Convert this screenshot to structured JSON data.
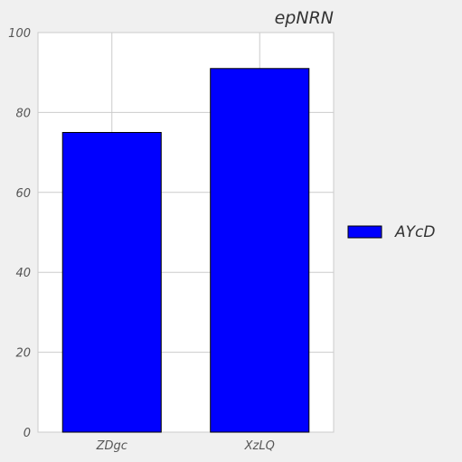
{
  "chart_data": {
    "type": "bar",
    "title": "epNRN",
    "xlabel": "",
    "ylabel": "",
    "categories": [
      "ZDgc",
      "XzLQ"
    ],
    "series": [
      {
        "name": "AYcD",
        "values": [
          75,
          91
        ]
      }
    ],
    "ylim": [
      0,
      100
    ],
    "yticks": [
      0,
      20,
      40,
      60,
      80,
      100
    ],
    "grid": true,
    "legend": "right",
    "colors": {
      "bar": "#0000ff",
      "bar_edge": "#000000",
      "plot_background": "#ffffff",
      "page_background": "#f0f0f0",
      "grid": "#cbcbcb"
    }
  }
}
